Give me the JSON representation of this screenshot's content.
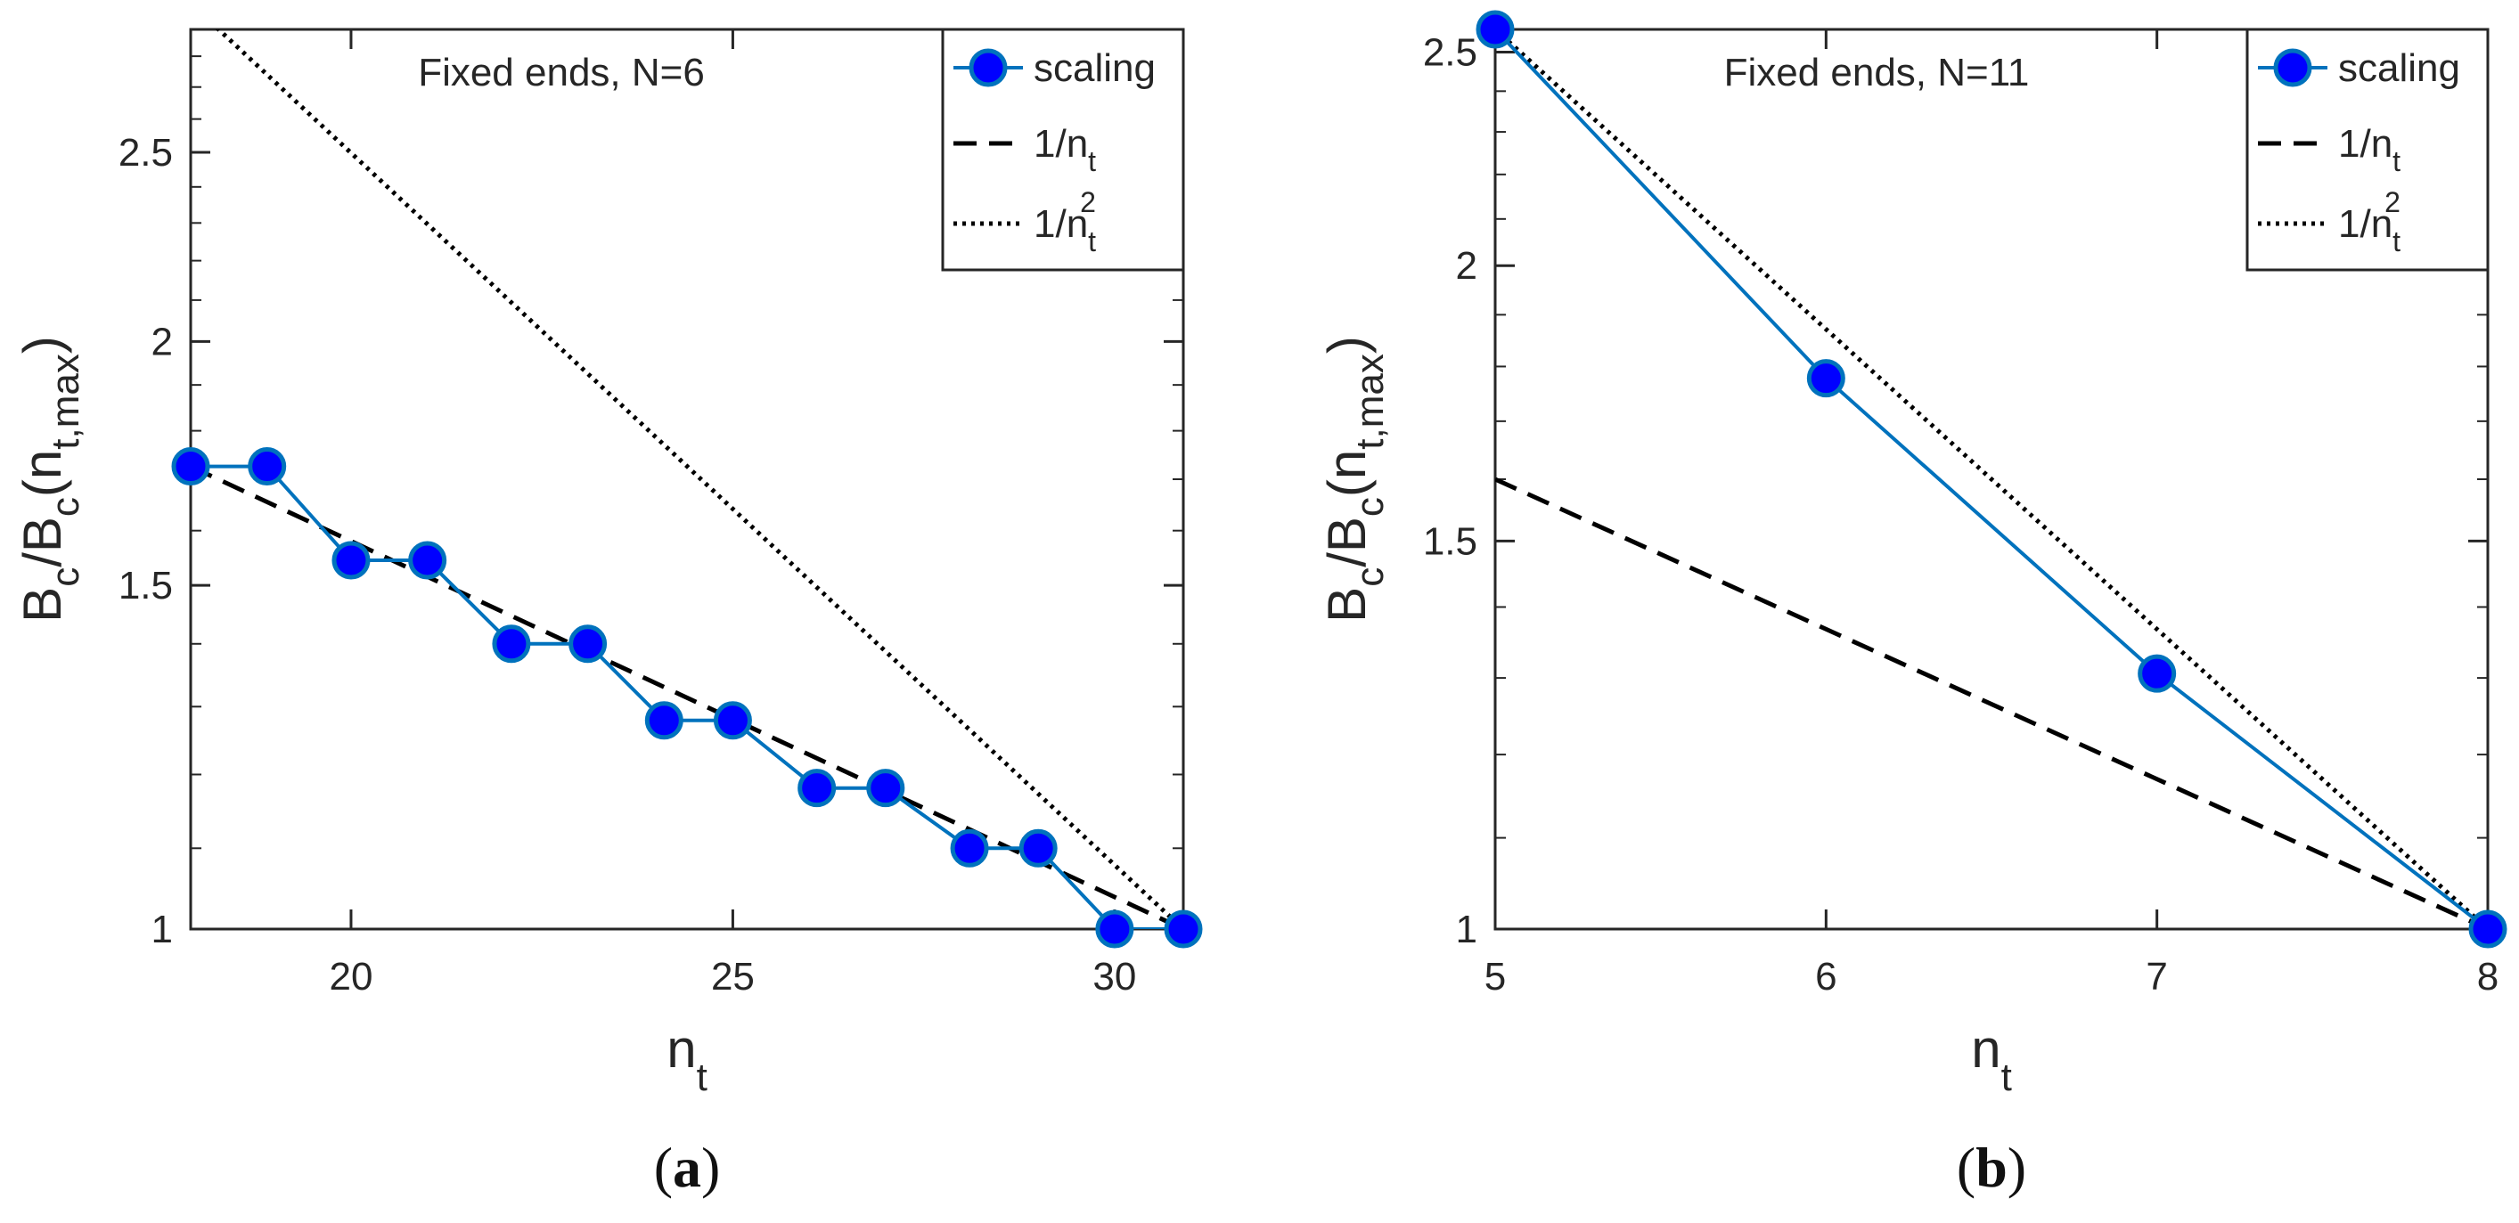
{
  "chart_data": [
    {
      "type": "line",
      "panel_label": "(a)",
      "panel_letter": "a",
      "title": "Fixed ends, N=6",
      "xlabel": "n",
      "xlabel_sub": "t",
      "ylabel": "B",
      "ylabel_parts": [
        "B",
        "c",
        "/B",
        "c",
        "(n",
        "t,max",
        ")"
      ],
      "yscale": "log",
      "xlim": [
        17.9,
        30.9
      ],
      "ylim": [
        1,
        2.89
      ],
      "xticks": [
        20,
        25,
        30
      ],
      "yticks": [
        1,
        1.5,
        2,
        2.5
      ],
      "ytick_labels": [
        "1",
        "1.5",
        "2",
        "2.5"
      ],
      "legend_position": "top-right",
      "legend": [
        {
          "name": "scaling",
          "sub": "",
          "sup": ""
        },
        {
          "name": "1/n",
          "sub": "t",
          "sup": ""
        },
        {
          "name": "1/n",
          "sub": "t",
          "sup": "2"
        }
      ],
      "series": [
        {
          "name": "scaling",
          "style": "markers-line",
          "color": "#0072BD",
          "marker_color": "#0000ff",
          "x": [
            17.9,
            18.9,
            20,
            21,
            22.1,
            23.1,
            24.1,
            25,
            26.1,
            27,
            28.1,
            29,
            30,
            30.9
          ],
          "y": [
            1.726,
            1.726,
            1.545,
            1.545,
            1.4,
            1.4,
            1.279,
            1.279,
            1.181,
            1.181,
            1.1,
            1.1,
            1.0,
            1.0
          ]
        },
        {
          "name": "1/n_t",
          "style": "dashed",
          "color": "#000000",
          "x": [
            17.9,
            30.9
          ],
          "y": [
            1.726,
            1.0
          ]
        },
        {
          "name": "1/n_t^2",
          "style": "dotted",
          "color": "#000000",
          "x": [
            17.9,
            30.9
          ],
          "y": [
            2.98,
            1.0
          ]
        }
      ]
    },
    {
      "type": "line",
      "panel_label": "(b)",
      "panel_letter": "b",
      "title": "Fixed ends, N=11",
      "xlabel": "n",
      "xlabel_sub": "t",
      "ylabel": "B",
      "ylabel_parts": [
        "B",
        "c",
        "/B",
        "c",
        "(n",
        "t,max",
        ")"
      ],
      "yscale": "log",
      "xlim": [
        5,
        8
      ],
      "ylim": [
        1,
        2.56
      ],
      "xticks": [
        5,
        6,
        7,
        8
      ],
      "yticks": [
        1,
        1.5,
        2,
        2.5
      ],
      "ytick_labels": [
        "1",
        "1.5",
        "2",
        "2.5"
      ],
      "legend_position": "top-right",
      "legend": [
        {
          "name": "scaling",
          "sub": "",
          "sup": ""
        },
        {
          "name": "1/n",
          "sub": "t",
          "sup": ""
        },
        {
          "name": "1/n",
          "sub": "t",
          "sup": "2"
        }
      ],
      "series": [
        {
          "name": "scaling",
          "style": "markers-line",
          "color": "#0072BD",
          "marker_color": "#0000ff",
          "x": [
            5,
            6,
            7,
            8
          ],
          "y": [
            2.56,
            1.778,
            1.306,
            1.0
          ]
        },
        {
          "name": "1/n_t",
          "style": "dashed",
          "color": "#000000",
          "x": [
            5,
            8
          ],
          "y": [
            1.6,
            1.0
          ]
        },
        {
          "name": "1/n_t^2",
          "style": "dotted",
          "color": "#000000",
          "x": [
            5,
            8
          ],
          "y": [
            2.56,
            1.0
          ]
        }
      ]
    }
  ]
}
